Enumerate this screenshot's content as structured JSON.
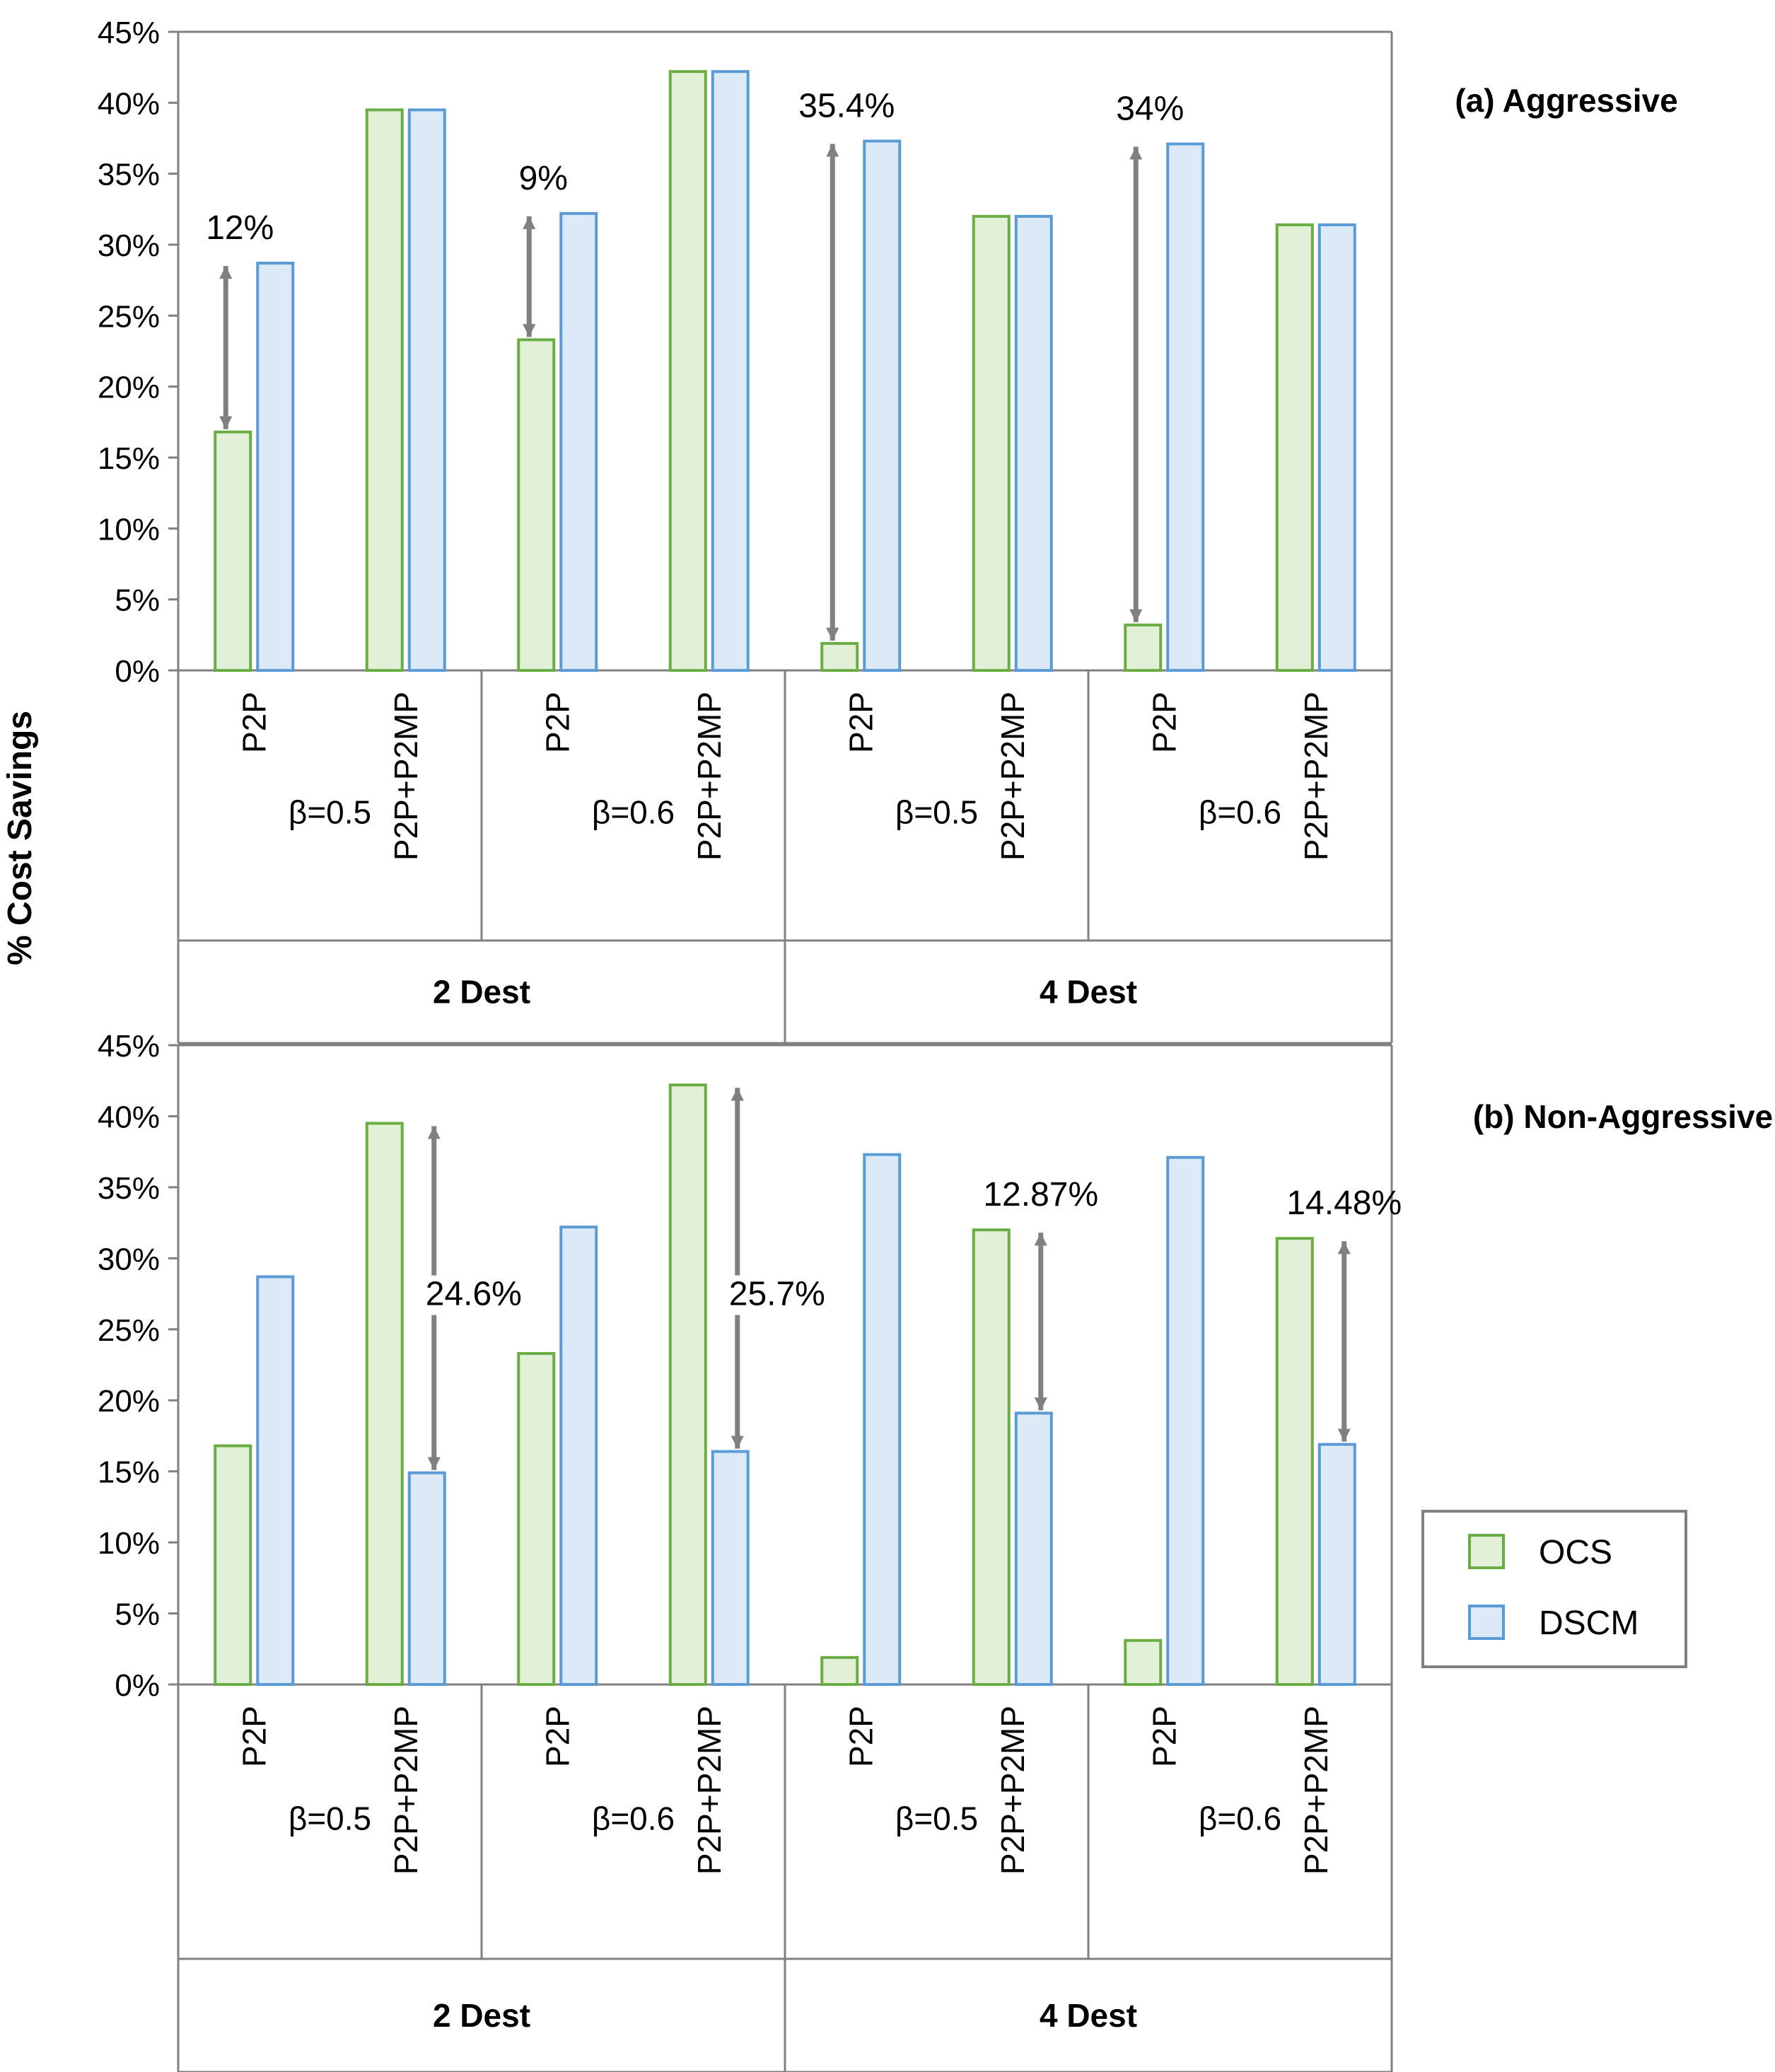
{
  "chart_data": {
    "type": "bar",
    "ylabel": "% Cost Savings",
    "ylim": [
      0,
      45
    ],
    "yticks": [
      "0%",
      "5%",
      "10%",
      "15%",
      "20%",
      "25%",
      "30%",
      "35%",
      "40%",
      "45%"
    ],
    "legend": {
      "position": "right",
      "entries": [
        "OCS",
        "DSCM"
      ]
    },
    "colors": {
      "OCS_fill": "#e3f0d8",
      "OCS_stroke": "#6aad45",
      "DSCM_fill": "#dce9f6",
      "DSCM_stroke": "#5b9bd5",
      "arrow": "#808080",
      "axis": "#808080"
    },
    "categories": [
      "P2P",
      "P2P+P2MP",
      "P2P",
      "P2P+P2MP",
      "P2P",
      "P2P+P2MP",
      "P2P",
      "P2P+P2MP"
    ],
    "betas": [
      "β=0.5",
      "β=0.6",
      "β=0.5",
      "β=0.6"
    ],
    "destinations": [
      "2 Dest",
      "4 Dest"
    ],
    "panels": [
      {
        "title": "(a) Aggressive",
        "series": [
          {
            "name": "OCS",
            "values": [
              16.8,
              39.5,
              23.3,
              42.2,
              1.9,
              32.0,
              3.2,
              31.4
            ]
          },
          {
            "name": "DSCM",
            "values": [
              28.7,
              39.5,
              32.2,
              42.2,
              37.3,
              32.0,
              37.1,
              31.4
            ]
          }
        ],
        "annotations": [
          {
            "text": "12%",
            "category_index": 0,
            "from": 16.8,
            "to": 28.7
          },
          {
            "text": "9%",
            "category_index": 2,
            "from": 23.3,
            "to": 32.2
          },
          {
            "text": "35.4%",
            "category_index": 4,
            "from": 1.9,
            "to": 37.3
          },
          {
            "text": "34%",
            "category_index": 6,
            "from": 3.2,
            "to": 37.1
          }
        ]
      },
      {
        "title": "(b) Non-Aggressive",
        "series": [
          {
            "name": "OCS",
            "values": [
              16.8,
              39.5,
              23.3,
              42.2,
              1.9,
              32.0,
              3.1,
              31.4
            ]
          },
          {
            "name": "DSCM",
            "values": [
              28.7,
              14.9,
              32.2,
              16.4,
              37.3,
              19.1,
              37.1,
              16.9
            ]
          }
        ],
        "annotations": [
          {
            "text": "24.6%",
            "category_index": 1,
            "from": 14.9,
            "to": 39.5
          },
          {
            "text": "25.7%",
            "category_index": 3,
            "from": 16.4,
            "to": 42.2
          },
          {
            "text": "12.87%",
            "category_index": 5,
            "from": 19.1,
            "to": 32.0
          },
          {
            "text": "14.48%",
            "category_index": 7,
            "from": 16.9,
            "to": 31.4
          }
        ]
      }
    ]
  }
}
